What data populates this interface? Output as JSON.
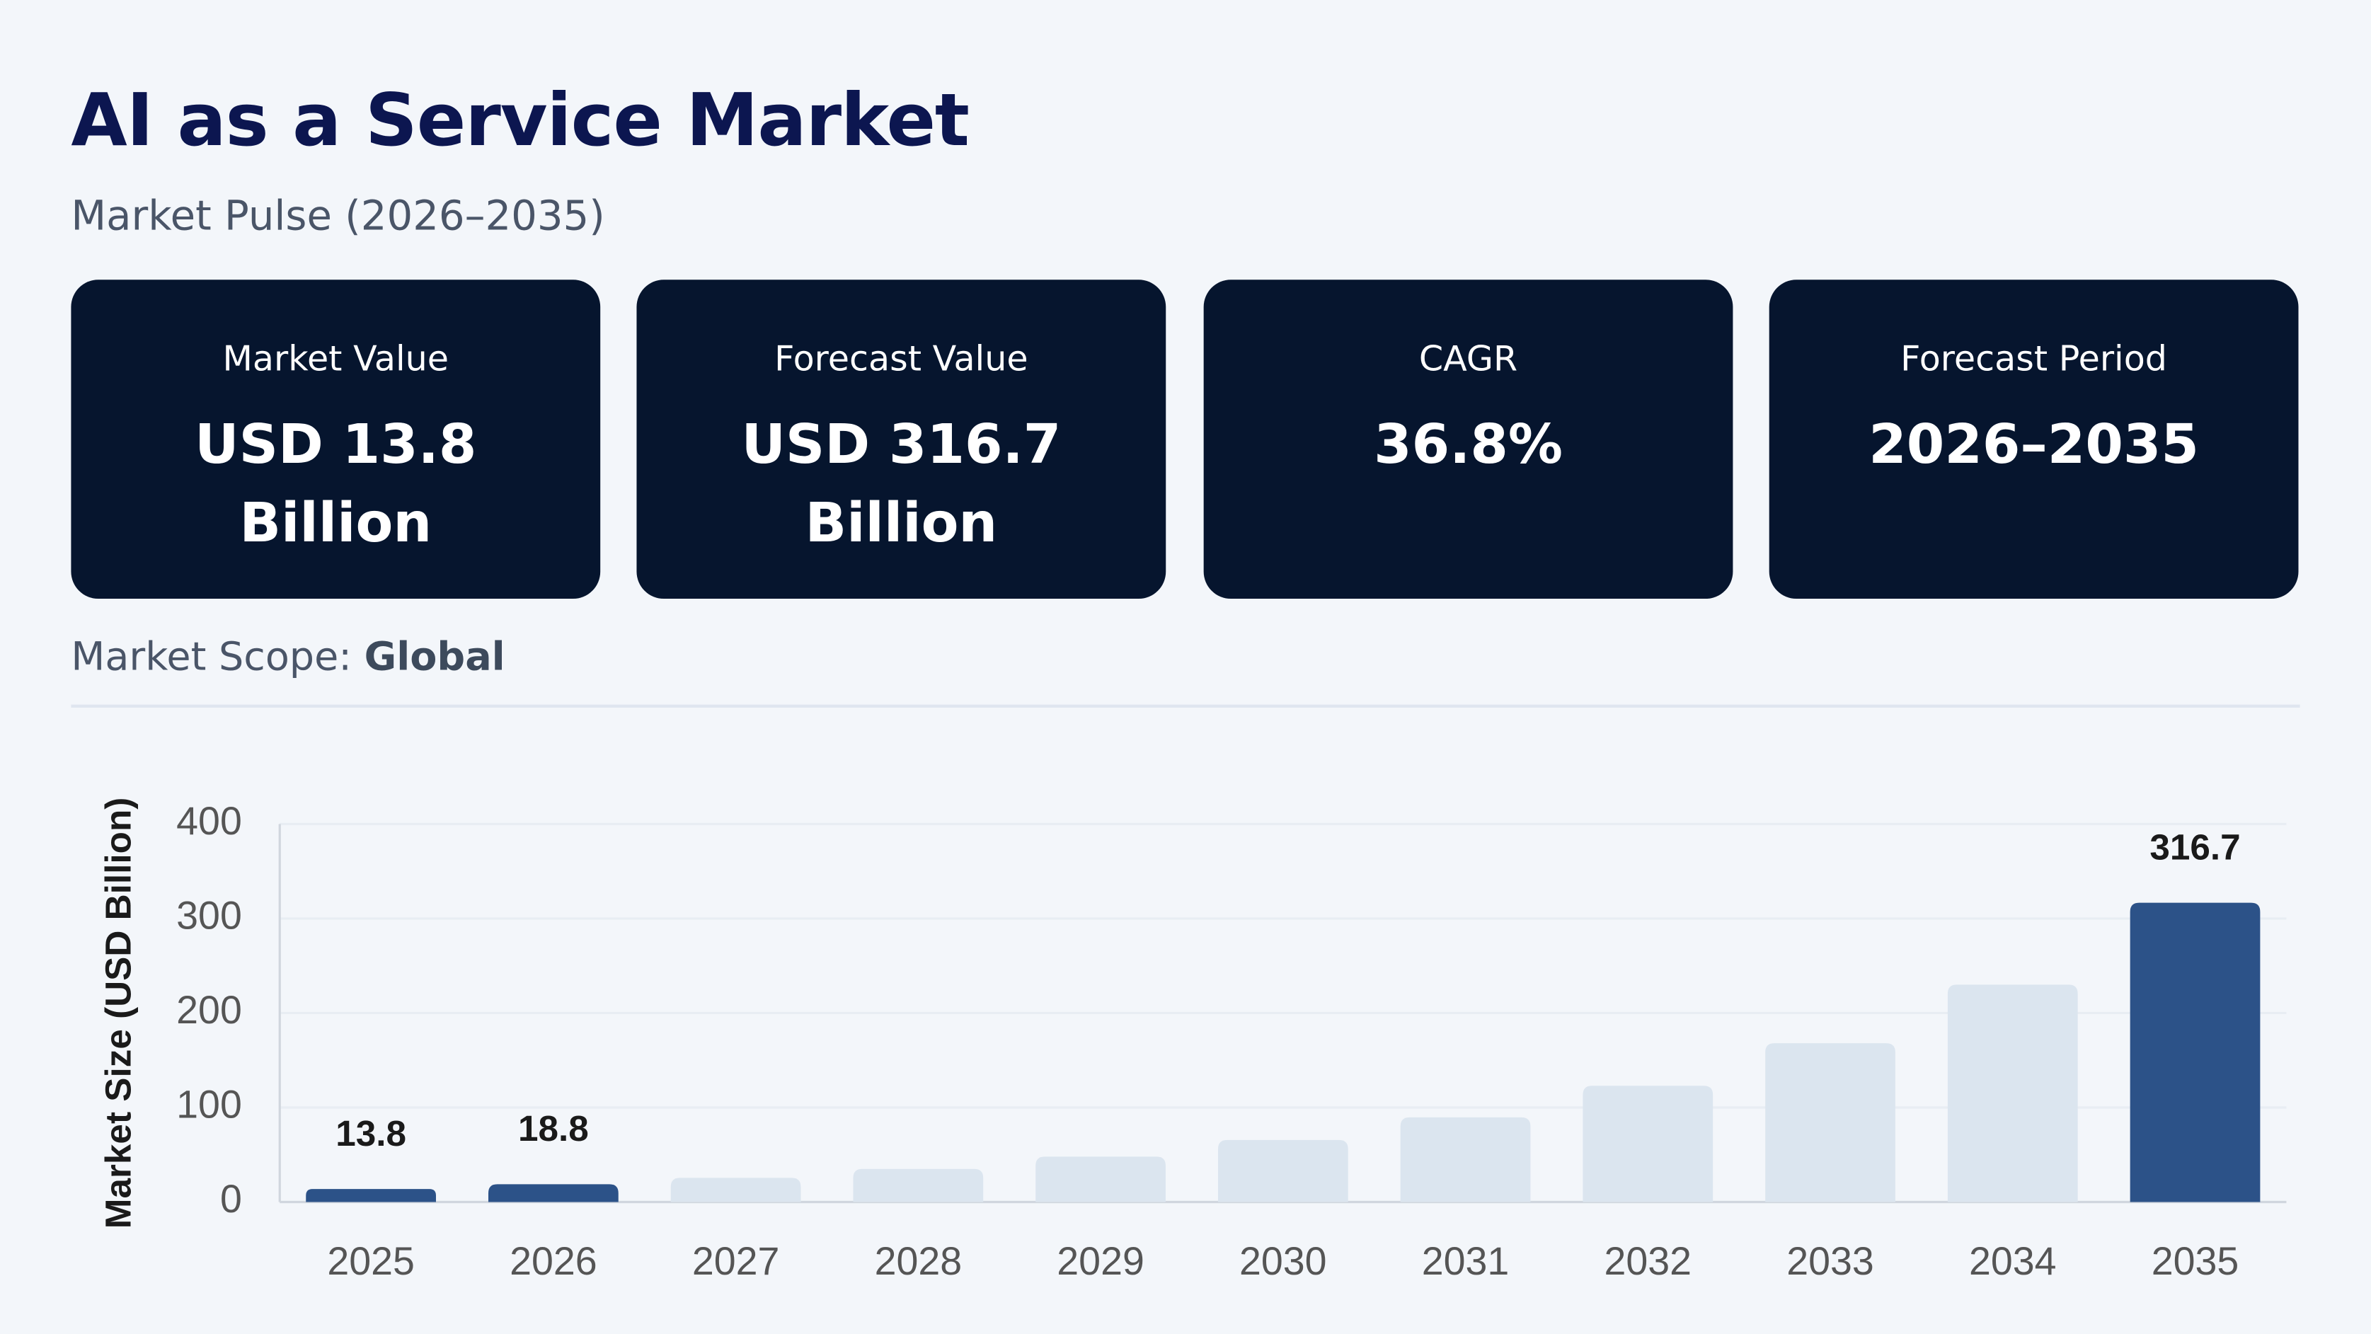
{
  "header": {
    "title": "AI as a Service Market",
    "subtitle": "Market Pulse (2026–2035)"
  },
  "cards": [
    {
      "label": "Market Value",
      "value": "USD 13.8 Billion"
    },
    {
      "label": "Forecast Value",
      "value": "USD 316.7 Billion"
    },
    {
      "label": "CAGR",
      "value": "36.8%"
    },
    {
      "label": "Forecast Period",
      "value": "2026–2035"
    }
  ],
  "scope": {
    "label": "Market Scope:",
    "value": "Global"
  },
  "chart_data": {
    "type": "bar",
    "y_label": "Market Size (USD Billion)",
    "categories": [
      "2025",
      "2026",
      "2027",
      "2028",
      "2029",
      "2030",
      "2031",
      "2032",
      "2033",
      "2034",
      "2035"
    ],
    "values": [
      13.8,
      18.8,
      25.6,
      35,
      48,
      65.6,
      89.6,
      123,
      168,
      230,
      316.7
    ],
    "value_labels": [
      "13.8",
      "18.8",
      null,
      null,
      null,
      null,
      null,
      null,
      null,
      null,
      "316.7"
    ],
    "colors": [
      "#2c5288",
      "#2c5288",
      "#dbe5ef",
      "#dbe5ef",
      "#dbe5ef",
      "#dbe5ef",
      "#dbe5ef",
      "#dbe5ef",
      "#dbe5ef",
      "#dbe5ef",
      "#2c5288"
    ],
    "ylim": [
      0,
      400
    ],
    "yticks": [
      0,
      100,
      200,
      300,
      400
    ],
    "grid": true
  }
}
